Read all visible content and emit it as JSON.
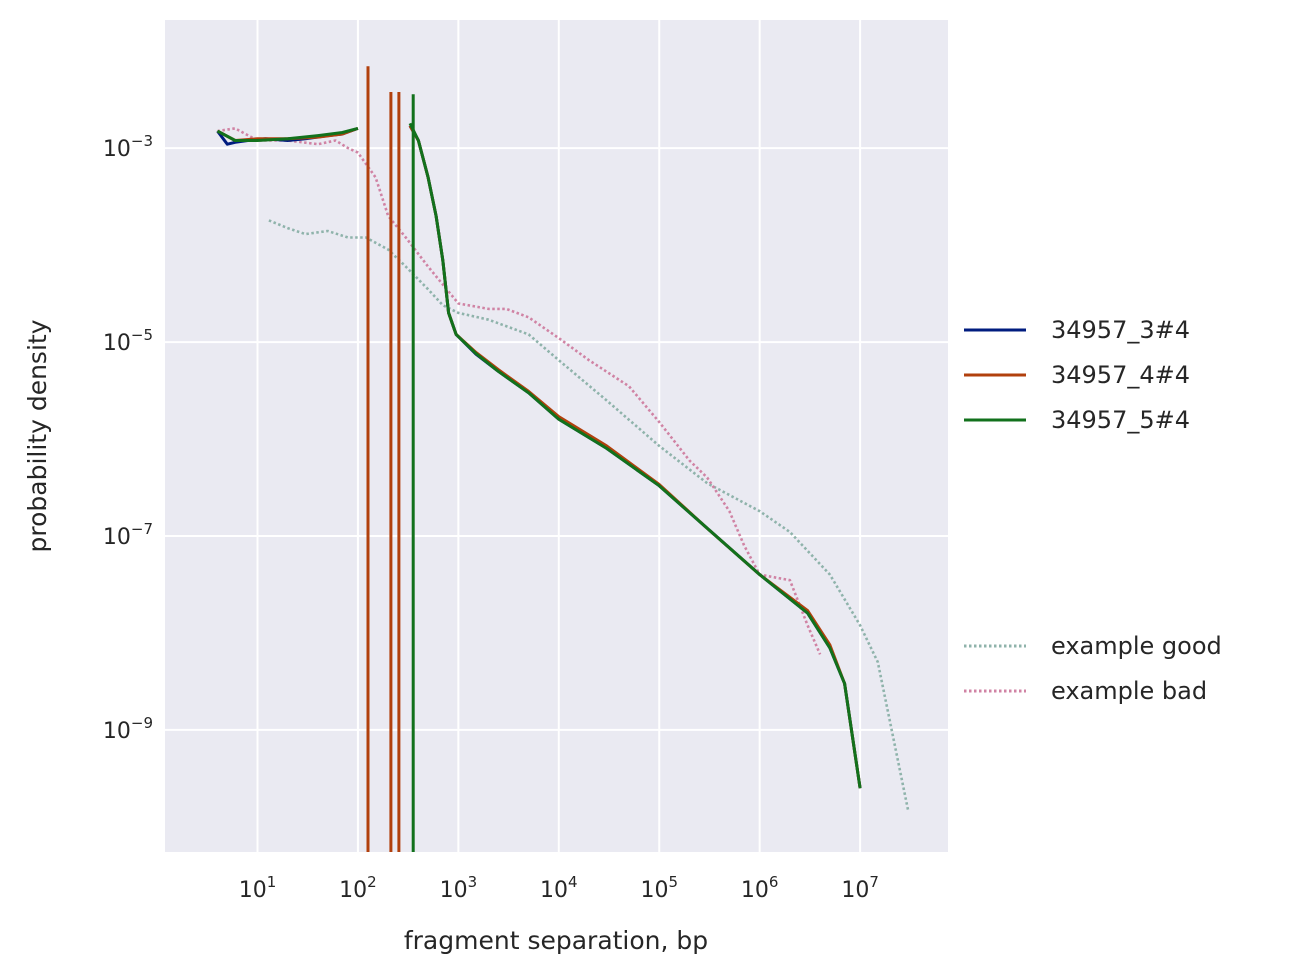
{
  "chart_data": {
    "type": "line",
    "xscale": "log",
    "yscale": "log",
    "xlabel": "fragment separation, bp",
    "ylabel": "probability density",
    "xlim": [
      1.2,
      75000000
    ],
    "ylim": [
      5.5e-11,
      0.021
    ],
    "grid": true,
    "legend_position": "right",
    "x_ticks": [
      {
        "value": 10,
        "base": "10",
        "exp": "1"
      },
      {
        "value": 100,
        "base": "10",
        "exp": "2"
      },
      {
        "value": 1000,
        "base": "10",
        "exp": "3"
      },
      {
        "value": 10000,
        "base": "10",
        "exp": "4"
      },
      {
        "value": 100000,
        "base": "10",
        "exp": "5"
      },
      {
        "value": 1000000,
        "base": "10",
        "exp": "6"
      },
      {
        "value": 10000000,
        "base": "10",
        "exp": "7"
      }
    ],
    "y_ticks": [
      {
        "value": 0.001,
        "base": "10",
        "exp": "−3"
      },
      {
        "value": 1e-05,
        "base": "10",
        "exp": "−5"
      },
      {
        "value": 1e-07,
        "base": "10",
        "exp": "−7"
      },
      {
        "value": 1e-09,
        "base": "10",
        "exp": "−9"
      }
    ],
    "colors": {
      "background": "#eaeaf2",
      "grid": "#ffffff",
      "s3": "#001c7f",
      "s4": "#b1400d",
      "s5": "#12711c",
      "good": "#8fb3ab",
      "bad": "#d083a4"
    },
    "series": [
      {
        "name": "34957_3#4",
        "color_key": "s3",
        "style": "solid",
        "segments": [
          [
            [
              4,
              0.0015
            ],
            [
              5,
              0.0011
            ],
            [
              6,
              0.00115
            ],
            [
              8,
              0.0012
            ],
            [
              12,
              0.00125
            ],
            [
              20,
              0.0012
            ],
            [
              30,
              0.00125
            ],
            [
              50,
              0.00135
            ],
            [
              70,
              0.0014
            ],
            [
              100,
              0.0016
            ]
          ],
          [
            [
              330,
              0.0017
            ],
            [
              400,
              0.0012
            ],
            [
              500,
              0.0005
            ],
            [
              600,
              0.0002
            ],
            [
              700,
              7e-05
            ],
            [
              800,
              2e-05
            ],
            [
              950,
              1.2e-05
            ],
            [
              1500,
              7.5e-06
            ],
            [
              2500,
              5e-06
            ],
            [
              5000,
              3e-06
            ],
            [
              10000,
              1.6e-06
            ],
            [
              30000,
              8e-07
            ],
            [
              100000,
              3.3e-07
            ],
            [
              300000,
              1.2e-07
            ],
            [
              1000000,
              4e-08
            ],
            [
              3000000,
              1.6e-08
            ],
            [
              5000000,
              7e-09
            ],
            [
              7000000,
              3e-09
            ],
            [
              10000000,
              2.5e-10
            ]
          ]
        ]
      },
      {
        "name": "34957_4#4",
        "color_key": "s4",
        "style": "solid",
        "segments": [
          [
            [
              4,
              0.0015
            ],
            [
              6,
              0.0012
            ],
            [
              10,
              0.00125
            ],
            [
              20,
              0.00125
            ],
            [
              40,
              0.0013
            ],
            [
              70,
              0.0014
            ],
            [
              100,
              0.0016
            ]
          ],
          [
            [
              126,
              0.007
            ],
            [
              126,
              4e-11
            ]
          ],
          [
            [
              213,
              0.0038
            ],
            [
              213,
              4e-11
            ]
          ],
          [
            [
              256,
              0.0038
            ],
            [
              256,
              4e-11
            ]
          ],
          [
            [
              330,
              0.0017
            ],
            [
              400,
              0.0012
            ],
            [
              500,
              0.0005
            ],
            [
              600,
              0.0002
            ],
            [
              700,
              7e-05
            ],
            [
              800,
              2e-05
            ],
            [
              950,
              1.2e-05
            ],
            [
              1500,
              7.8e-06
            ],
            [
              2500,
              5.2e-06
            ],
            [
              5000,
              3.1e-06
            ],
            [
              10000,
              1.7e-06
            ],
            [
              30000,
              8.5e-07
            ],
            [
              100000,
              3.4e-07
            ],
            [
              300000,
              1.2e-07
            ],
            [
              1000000,
              4e-08
            ],
            [
              3000000,
              1.7e-08
            ],
            [
              5000000,
              7.5e-09
            ],
            [
              7000000,
              3e-09
            ],
            [
              10000000,
              2.5e-10
            ]
          ]
        ]
      },
      {
        "name": "34957_5#4",
        "color_key": "s5",
        "style": "solid",
        "segments": [
          [
            [
              4,
              0.0015
            ],
            [
              6,
              0.0012
            ],
            [
              10,
              0.0012
            ],
            [
              20,
              0.00125
            ],
            [
              40,
              0.00135
            ],
            [
              70,
              0.00145
            ],
            [
              100,
              0.0016
            ]
          ],
          [
            [
              355,
              0.0036
            ],
            [
              355,
              4e-11
            ]
          ],
          [
            [
              330,
              0.0018
            ],
            [
              400,
              0.0012
            ],
            [
              500,
              0.0005
            ],
            [
              600,
              0.0002
            ],
            [
              700,
              7e-05
            ],
            [
              800,
              2e-05
            ],
            [
              950,
              1.2e-05
            ],
            [
              1500,
              7.6e-06
            ],
            [
              2500,
              5e-06
            ],
            [
              5000,
              3e-06
            ],
            [
              10000,
              1.6e-06
            ],
            [
              30000,
              8e-07
            ],
            [
              100000,
              3.3e-07
            ],
            [
              300000,
              1.2e-07
            ],
            [
              1000000,
              4e-08
            ],
            [
              3000000,
              1.6e-08
            ],
            [
              5000000,
              7e-09
            ],
            [
              7000000,
              3e-09
            ],
            [
              10000000,
              2.5e-10
            ]
          ]
        ]
      },
      {
        "name": "example good",
        "color_key": "good",
        "style": "dotted",
        "segments": [
          [
            [
              13,
              0.00018
            ],
            [
              20,
              0.00015
            ],
            [
              30,
              0.00013
            ],
            [
              50,
              0.00014
            ],
            [
              80,
              0.00012
            ],
            [
              120,
              0.00012
            ],
            [
              200,
              9e-05
            ],
            [
              300,
              6e-05
            ],
            [
              500,
              3.5e-05
            ],
            [
              700,
              2.4e-05
            ],
            [
              1000,
              2e-05
            ],
            [
              2000,
              1.7e-05
            ],
            [
              5000,
              1.2e-05
            ],
            [
              10000,
              6.5e-06
            ],
            [
              30000,
              2.5e-06
            ],
            [
              100000,
              8.5e-07
            ],
            [
              300000,
              3.5e-07
            ],
            [
              1000000,
              1.8e-07
            ],
            [
              2000000,
              1.1e-07
            ],
            [
              5000000,
              4e-08
            ],
            [
              10000000,
              1.2e-08
            ],
            [
              15000000,
              5e-09
            ],
            [
              30000000,
              1.5e-10
            ]
          ]
        ]
      },
      {
        "name": "example bad",
        "color_key": "bad",
        "style": "dotted",
        "segments": [
          [
            [
              4,
              0.0015
            ],
            [
              6,
              0.0016
            ],
            [
              10,
              0.0012
            ],
            [
              20,
              0.0012
            ],
            [
              40,
              0.0011
            ],
            [
              60,
              0.0012
            ],
            [
              80,
              0.001
            ],
            [
              100,
              0.0009
            ],
            [
              150,
              0.0005
            ],
            [
              200,
              0.0002
            ],
            [
              300,
              0.00012
            ],
            [
              500,
              6e-05
            ],
            [
              1000,
              2.5e-05
            ],
            [
              2000,
              2.2e-05
            ],
            [
              3000,
              2.2e-05
            ],
            [
              5000,
              1.8e-05
            ],
            [
              10000,
              1.1e-05
            ],
            [
              20000,
              6.5e-06
            ],
            [
              50000,
              3.5e-06
            ],
            [
              100000,
              1.5e-06
            ],
            [
              200000,
              6e-07
            ],
            [
              300000,
              4e-07
            ],
            [
              500000,
              1.8e-07
            ],
            [
              700000,
              8e-08
            ],
            [
              1000000,
              4e-08
            ],
            [
              2000000,
              3.5e-08
            ],
            [
              3000000,
              1.2e-08
            ],
            [
              4000000,
              6e-09
            ]
          ]
        ]
      }
    ],
    "legend_groups": [
      [
        "34957_3#4",
        "34957_4#4",
        "34957_5#4"
      ],
      [
        "example good",
        "example bad"
      ]
    ]
  }
}
